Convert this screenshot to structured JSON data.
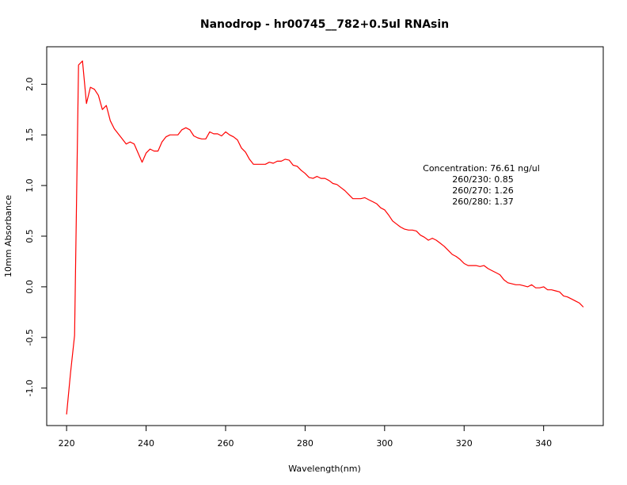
{
  "chart_data": {
    "type": "line",
    "title": "Nanodrop - hr00745__782+0.5ul RNAsin",
    "xlabel": "Wavelength(nm)",
    "ylabel": "10mm Absorbance",
    "xlim": [
      215,
      355
    ],
    "ylim": [
      -1.37,
      2.37
    ],
    "xticks": [
      220,
      240,
      260,
      280,
      300,
      320,
      340
    ],
    "yticks": [
      -1.0,
      -0.5,
      0.0,
      0.5,
      1.0,
      1.5,
      2.0
    ],
    "ytick_labels": [
      "-1.0",
      "-0.5",
      "0.0",
      "0.5",
      "1.0",
      "1.5",
      "2.0"
    ],
    "grid": false,
    "legend": "none",
    "series": [
      {
        "color": "#ff0000",
        "x": [
          220,
          221,
          222,
          223,
          224,
          225,
          226,
          227,
          228,
          229,
          230,
          231,
          232,
          233,
          234,
          235,
          236,
          237,
          238,
          239,
          240,
          241,
          242,
          243,
          244,
          245,
          246,
          247,
          248,
          249,
          250,
          251,
          252,
          253,
          254,
          255,
          256,
          257,
          258,
          259,
          260,
          261,
          262,
          263,
          264,
          265,
          266,
          267,
          268,
          269,
          270,
          271,
          272,
          273,
          274,
          275,
          276,
          277,
          278,
          279,
          280,
          281,
          282,
          283,
          284,
          285,
          286,
          287,
          288,
          289,
          290,
          291,
          292,
          293,
          294,
          295,
          296,
          297,
          298,
          299,
          300,
          301,
          302,
          303,
          304,
          305,
          306,
          307,
          308,
          309,
          310,
          311,
          312,
          313,
          314,
          315,
          316,
          317,
          318,
          319,
          320,
          321,
          322,
          323,
          324,
          325,
          326,
          327,
          328,
          329,
          330,
          331,
          332,
          333,
          334,
          335,
          336,
          337,
          338,
          339,
          340,
          341,
          342,
          343,
          344,
          345,
          346,
          347,
          348,
          349,
          350
        ],
        "y": [
          -1.26,
          -0.85,
          -0.48,
          2.19,
          2.23,
          1.81,
          1.97,
          1.95,
          1.89,
          1.75,
          1.79,
          1.64,
          1.56,
          1.51,
          1.46,
          1.41,
          1.43,
          1.41,
          1.32,
          1.23,
          1.32,
          1.36,
          1.34,
          1.34,
          1.43,
          1.48,
          1.5,
          1.5,
          1.5,
          1.55,
          1.57,
          1.55,
          1.49,
          1.47,
          1.46,
          1.46,
          1.53,
          1.51,
          1.51,
          1.49,
          1.53,
          1.5,
          1.48,
          1.45,
          1.37,
          1.33,
          1.26,
          1.21,
          1.21,
          1.21,
          1.21,
          1.23,
          1.22,
          1.24,
          1.24,
          1.26,
          1.25,
          1.2,
          1.19,
          1.15,
          1.12,
          1.08,
          1.07,
          1.09,
          1.07,
          1.07,
          1.05,
          1.02,
          1.01,
          0.98,
          0.95,
          0.91,
          0.87,
          0.87,
          0.87,
          0.88,
          0.86,
          0.84,
          0.82,
          0.78,
          0.76,
          0.71,
          0.65,
          0.62,
          0.59,
          0.57,
          0.56,
          0.56,
          0.55,
          0.51,
          0.49,
          0.46,
          0.48,
          0.46,
          0.43,
          0.4,
          0.36,
          0.32,
          0.3,
          0.27,
          0.23,
          0.21,
          0.21,
          0.21,
          0.2,
          0.21,
          0.18,
          0.16,
          0.14,
          0.12,
          0.07,
          0.04,
          0.03,
          0.02,
          0.02,
          0.01,
          0.0,
          0.02,
          -0.01,
          -0.01,
          0.0,
          -0.03,
          -0.03,
          -0.04,
          -0.05,
          -0.09,
          -0.1,
          -0.12,
          -0.14,
          -0.16,
          -0.2
        ]
      }
    ],
    "annotations": [
      "Concentration: 76.61 ng/ul",
      "260/230: 0.85",
      "260/270: 1.26",
      "260/280: 1.37"
    ]
  }
}
